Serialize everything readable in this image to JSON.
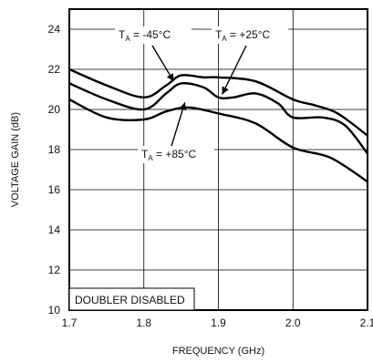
{
  "chart_data": {
    "type": "line",
    "xlabel": "FREQUENCY (GHz)",
    "ylabel": "VOLTAGE GAIN (dB)",
    "xlim": [
      1.7,
      2.1
    ],
    "ylim": [
      10,
      25
    ],
    "grid": true,
    "x_ticks": [
      "1.7",
      "1.8",
      "1.9",
      "2.0",
      "2.1"
    ],
    "y_ticks": [
      "10",
      "12",
      "14",
      "16",
      "18",
      "20",
      "22",
      "24"
    ],
    "note": "DOUBLER DISABLED",
    "series": [
      {
        "name": "TA = -45°C",
        "annotation": {
          "base": "T",
          "sub": "A",
          "rest": " = -45°C"
        },
        "x": [
          1.7,
          1.75,
          1.8,
          1.83,
          1.85,
          1.88,
          1.9,
          1.95,
          2.0,
          2.03,
          2.06,
          2.1
        ],
        "y": [
          22.0,
          21.2,
          20.6,
          21.2,
          21.7,
          21.6,
          21.6,
          21.4,
          20.5,
          20.2,
          19.8,
          18.7
        ]
      },
      {
        "name": "TA = +25°C",
        "annotation": {
          "base": "T",
          "sub": "A",
          "rest": " = +25°C"
        },
        "x": [
          1.7,
          1.75,
          1.8,
          1.83,
          1.85,
          1.88,
          1.9,
          1.92,
          1.95,
          1.98,
          2.0,
          2.04,
          2.07,
          2.1
        ],
        "y": [
          21.3,
          20.5,
          20.0,
          20.8,
          21.3,
          21.1,
          20.6,
          20.6,
          20.8,
          20.3,
          19.6,
          19.6,
          19.2,
          17.8
        ]
      },
      {
        "name": "TA = +85°C",
        "annotation": {
          "base": "T",
          "sub": "A",
          "rest": " = +85°C"
        },
        "x": [
          1.7,
          1.75,
          1.8,
          1.83,
          1.86,
          1.9,
          1.95,
          2.0,
          2.05,
          2.1
        ],
        "y": [
          20.5,
          19.6,
          19.5,
          19.9,
          20.1,
          19.8,
          19.3,
          18.1,
          17.6,
          16.4
        ]
      }
    ]
  }
}
